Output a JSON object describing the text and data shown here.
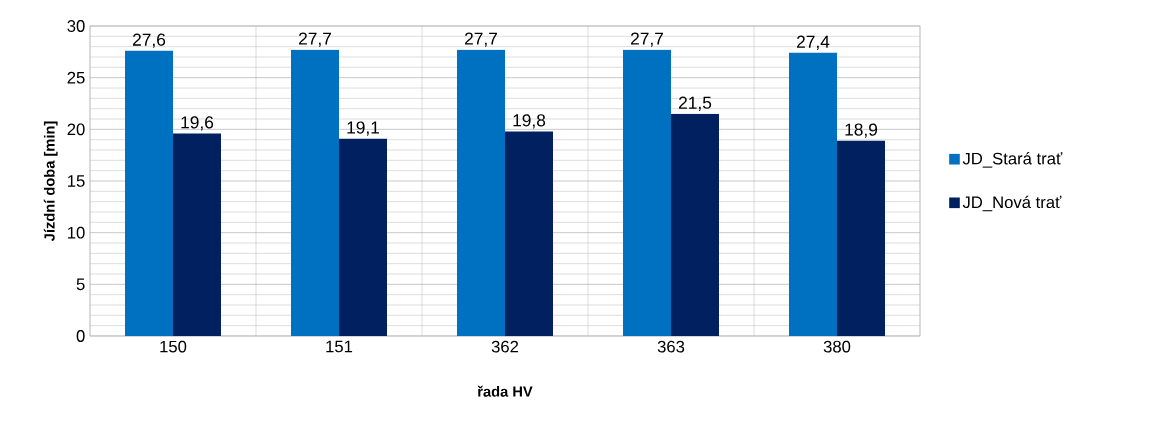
{
  "chart_data": {
    "type": "bar",
    "xlabel": "řada HV",
    "ylabel": "Jízdní doba [min]",
    "categories": [
      "150",
      "151",
      "362",
      "363",
      "380"
    ],
    "series": [
      {
        "name": "JD_Stará trať",
        "color": "#0070c0",
        "values": [
          27.6,
          27.7,
          27.7,
          27.7,
          27.4
        ],
        "value_labels": [
          "27,6",
          "27,7",
          "27,7",
          "27,7",
          "27,4"
        ]
      },
      {
        "name": "JD_Nová trať",
        "color": "#002060",
        "values": [
          19.6,
          19.1,
          19.8,
          21.5,
          18.9
        ],
        "value_labels": [
          "19,6",
          "19,1",
          "19,8",
          "21,5",
          "18,9"
        ]
      }
    ],
    "ylim": [
      0,
      30
    ],
    "yticks": [
      0,
      5,
      10,
      15,
      20,
      25,
      30
    ],
    "grid": true,
    "legend": "right"
  }
}
